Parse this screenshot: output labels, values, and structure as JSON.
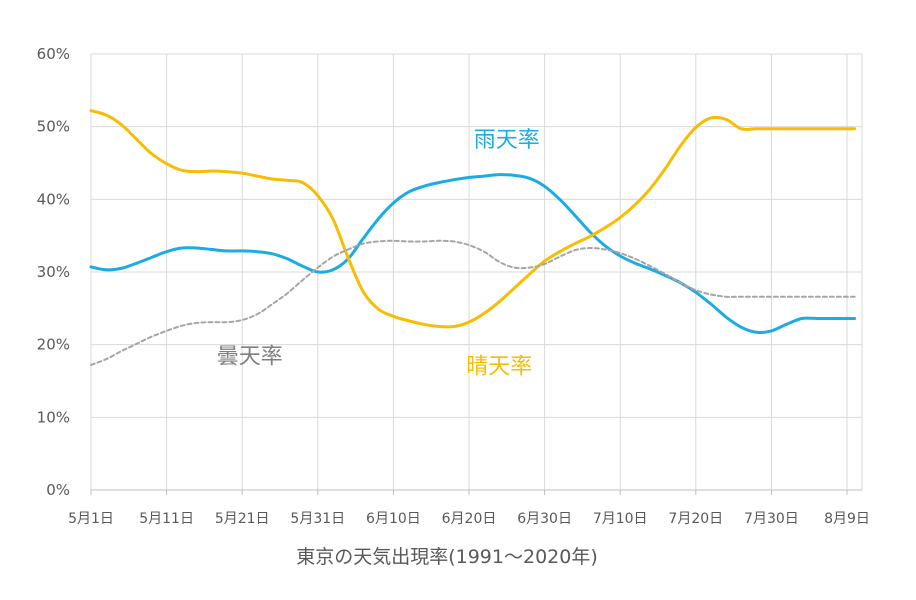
{
  "chart_data": {
    "type": "line",
    "title": "東京の天気出現率(1991～2020年)",
    "xlabel": "",
    "ylabel": "",
    "x_ticks": [
      "5月1日",
      "5月11日",
      "5月21日",
      "5月31日",
      "6月10日",
      "6月20日",
      "6月30日",
      "7月10日",
      "7月20日",
      "7月30日",
      "8月9日"
    ],
    "y_ticks": [
      "0%",
      "10%",
      "20%",
      "30%",
      "40%",
      "50%",
      "60%"
    ],
    "ylim": [
      0,
      60
    ],
    "grid": true,
    "legend": "labels on chart",
    "series": [
      {
        "name": "雨天率",
        "color": "#1cabe2",
        "dash": false,
        "x": [
          1,
          3,
          5,
          7,
          9,
          11,
          13,
          15,
          17,
          19,
          21,
          23,
          25,
          27,
          29,
          31,
          33,
          35,
          37,
          39,
          41,
          43,
          45,
          47,
          49,
          51,
          53,
          55,
          57,
          59,
          61,
          63,
          65,
          67,
          69,
          71,
          73,
          75,
          77,
          79,
          81,
          83,
          85,
          87,
          89,
          91,
          93,
          95,
          97,
          99,
          101,
          102
        ],
        "values": [
          30.7,
          30.3,
          30.5,
          31.2,
          32.0,
          32.8,
          33.3,
          33.3,
          33.1,
          32.9,
          32.9,
          32.8,
          32.5,
          31.8,
          30.8,
          30.0,
          30.3,
          31.8,
          34.6,
          37.3,
          39.5,
          41.0,
          41.8,
          42.3,
          42.7,
          43.0,
          43.2,
          43.4,
          43.3,
          42.9,
          41.8,
          40.0,
          37.8,
          35.5,
          33.6,
          32.2,
          31.2,
          30.4,
          29.5,
          28.5,
          27.2,
          25.6,
          23.8,
          22.4,
          21.7,
          21.9,
          22.8,
          23.6,
          23.6,
          23.6,
          23.6,
          23.6
        ]
      },
      {
        "name": "晴天率",
        "color": "#f8bc00",
        "dash": false,
        "x": [
          1,
          3,
          5,
          7,
          9,
          11,
          13,
          15,
          17,
          19,
          21,
          23,
          25,
          27,
          29,
          31,
          33,
          35,
          37,
          39,
          41,
          43,
          45,
          47,
          49,
          51,
          53,
          55,
          57,
          59,
          61,
          63,
          65,
          67,
          69,
          71,
          73,
          75,
          77,
          79,
          81,
          83,
          85,
          87,
          89,
          91,
          93,
          95,
          97,
          99,
          101,
          102
        ],
        "values": [
          52.2,
          51.6,
          50.3,
          48.3,
          46.3,
          44.9,
          44.0,
          43.8,
          43.9,
          43.8,
          43.6,
          43.2,
          42.8,
          42.6,
          42.3,
          40.5,
          37.3,
          32.0,
          27.3,
          24.9,
          23.9,
          23.3,
          22.8,
          22.5,
          22.5,
          23.1,
          24.3,
          25.9,
          27.8,
          29.7,
          31.5,
          32.8,
          33.9,
          34.9,
          36.1,
          37.5,
          39.3,
          41.5,
          44.3,
          47.4,
          49.9,
          51.2,
          51.0,
          49.7,
          49.7,
          49.7,
          49.7,
          49.7,
          49.7,
          49.7,
          49.7,
          49.7
        ]
      },
      {
        "name": "曇天率",
        "color": "#a6a6a6",
        "dash": true,
        "x": [
          1,
          3,
          5,
          7,
          9,
          11,
          13,
          15,
          17,
          19,
          21,
          23,
          25,
          27,
          29,
          31,
          33,
          35,
          37,
          39,
          41,
          43,
          45,
          47,
          49,
          51,
          53,
          55,
          57,
          59,
          61,
          63,
          65,
          67,
          69,
          71,
          73,
          75,
          77,
          79,
          81,
          83,
          85,
          87,
          89,
          91,
          93,
          95,
          97,
          99,
          101,
          102
        ],
        "values": [
          17.2,
          18.0,
          19.1,
          20.1,
          21.1,
          21.9,
          22.6,
          23.0,
          23.1,
          23.1,
          23.4,
          24.2,
          25.6,
          27.1,
          28.9,
          30.6,
          32.1,
          33.1,
          33.9,
          34.2,
          34.3,
          34.2,
          34.2,
          34.3,
          34.2,
          33.7,
          32.8,
          31.4,
          30.6,
          30.6,
          31.1,
          32.1,
          33.0,
          33.3,
          33.1,
          32.6,
          31.8,
          30.8,
          29.7,
          28.5,
          27.5,
          26.9,
          26.6,
          26.6,
          26.6,
          26.6,
          26.6,
          26.6,
          26.6,
          26.6,
          26.6,
          26.6
        ]
      }
    ],
    "series_labels": [
      {
        "text": "雨天率",
        "color": "#1cabe2",
        "at_x": 56,
        "at_y": 47.2
      },
      {
        "text": "晴天率",
        "color": "#f8bc00",
        "at_x": 55,
        "at_y": 16.0
      },
      {
        "text": "曇天率",
        "color": "#808080",
        "at_x": 22,
        "at_y": 17.4
      }
    ]
  }
}
